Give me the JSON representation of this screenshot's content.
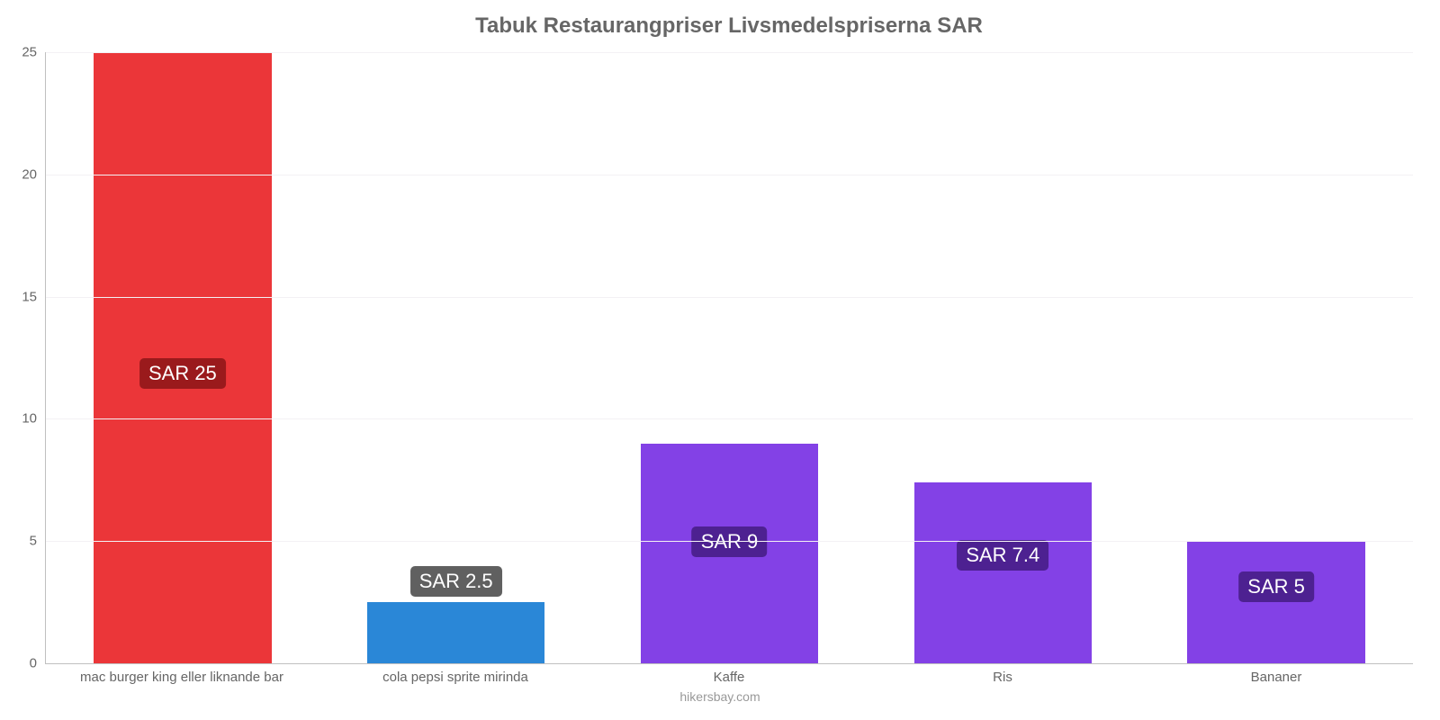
{
  "chart": {
    "type": "bar",
    "title": "Tabuk Restaurangpriser Livsmedelspriserna SAR",
    "title_fontsize": 24,
    "title_color": "#666666",
    "credit": "hikersbay.com",
    "credit_fontsize": 14,
    "credit_color": "#999999",
    "background_color": "#ffffff",
    "grid_color": "#f3f1f4",
    "axis_color": "#c0c0c0",
    "tick_color": "#666666",
    "tick_fontsize": 15,
    "x_label_fontsize": 15,
    "ylim": [
      0,
      25
    ],
    "yticks": [
      0,
      5,
      10,
      15,
      20,
      25
    ],
    "bar_width_pct": 65,
    "badge_fontsize": 22,
    "badge_text_color": "#ffffff",
    "badge_radius": 5,
    "categories": [
      "mac burger king eller liknande bar",
      "cola pepsi sprite mirinda",
      "Kaffe",
      "Ris",
      "Bananer"
    ],
    "values": [
      25,
      2.5,
      9,
      7.4,
      5
    ],
    "value_labels": [
      "SAR 25",
      "SAR 2.5",
      "SAR 9",
      "SAR 7.4",
      "SAR 5"
    ],
    "bar_colors": [
      "#eb3639",
      "#2a87d7",
      "#8341e6",
      "#8341e6",
      "#8341e6"
    ],
    "badge_bg_colors": [
      "#9a1a1c",
      "#606060",
      "#4d2191",
      "#4d2191",
      "#4d2191"
    ],
    "badge_offsets_pct": [
      50,
      -18,
      38,
      32,
      25
    ]
  }
}
